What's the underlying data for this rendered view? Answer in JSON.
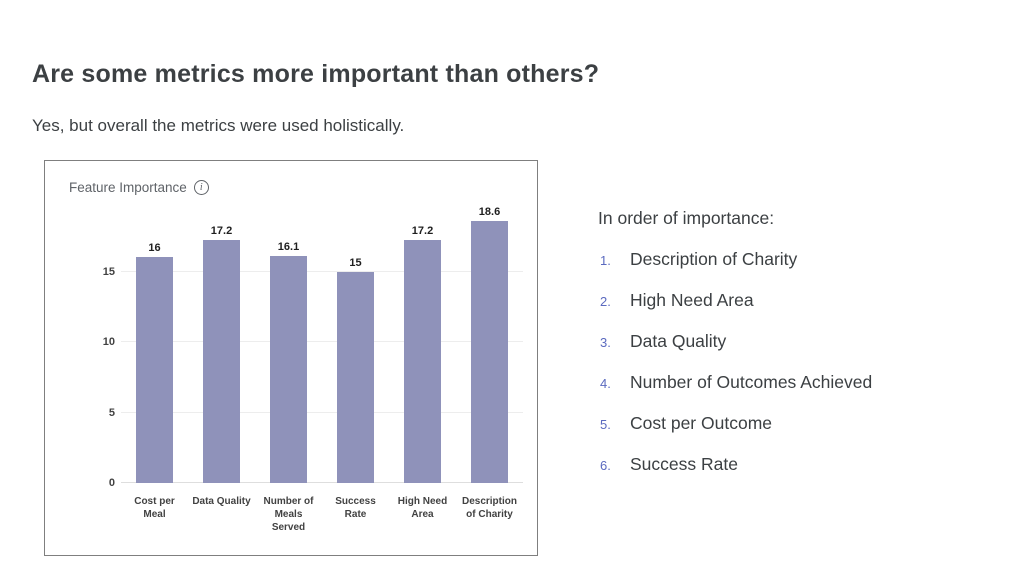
{
  "page": {
    "title": "Are some metrics more important than others?",
    "subtitle": "Yes, but overall the metrics were used holistically."
  },
  "chart": {
    "title": "Feature Importance",
    "info_icon_glyph": "i"
  },
  "chart_data": {
    "type": "bar",
    "title": "Feature Importance",
    "categories": [
      "Cost per Meal",
      "Data Quality",
      "Number of Meals Served",
      "Success Rate",
      "High Need Area",
      "Description of Charity"
    ],
    "category_labels": [
      "Cost per\nMeal",
      "Data Quality",
      "Number of\nMeals\nServed",
      "Success\nRate",
      "High Need\nArea",
      "Description\nof Charity"
    ],
    "values": [
      16,
      17.2,
      16.1,
      15,
      17.2,
      18.6
    ],
    "value_labels": [
      "16",
      "17.2",
      "16.1",
      "15",
      "17.2",
      "18.6"
    ],
    "xlabel": "",
    "ylabel": "",
    "ylim": [
      0,
      20
    ],
    "yticks": [
      0,
      5,
      10,
      15
    ],
    "grid": true,
    "legend": "none",
    "bar_color": "#8f92ba"
  },
  "importance_list": {
    "heading": "In order of importance:",
    "items": [
      "Description of Charity",
      "High Need Area",
      "Data Quality",
      "Number of Outcomes Achieved",
      "Cost per Outcome",
      "Success Rate"
    ],
    "number_color": "#5b6abf"
  }
}
